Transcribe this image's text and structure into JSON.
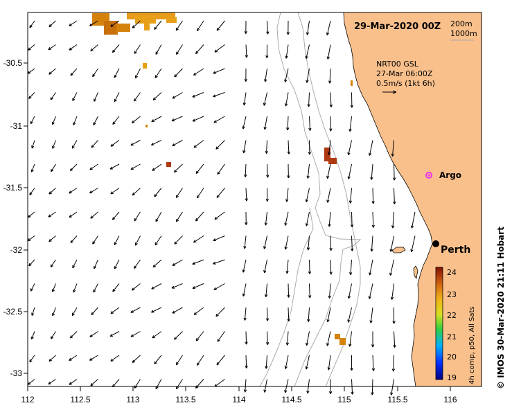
{
  "header": {
    "date_label": "29-Mar-2020 00Z",
    "depth_contours": [
      "200m",
      "1000m"
    ]
  },
  "current_legend": {
    "line1": "NRT00 GSL",
    "line2": "27-Mar 06:00Z",
    "line3": "0.5m/s (1kt 6h)"
  },
  "axes": {
    "x_ticks": [
      "112",
      "112.5",
      "113",
      "113.5",
      "114",
      "114.5",
      "115",
      "115.5",
      "116"
    ],
    "y_ticks": [
      "-30.5",
      "-31",
      "-31.5",
      "-32",
      "-32.5",
      "-33"
    ]
  },
  "places": {
    "argo_label": "Argo",
    "perth_label": "Perth"
  },
  "colorbar": {
    "title": "4h comp, p50, All Sats",
    "ticks": [
      "24",
      "23",
      "22",
      "21",
      "20",
      "19"
    ],
    "range": [
      19,
      24
    ]
  },
  "credit": "© IMOS 30-Mar-2020 21:11 Hobart",
  "colors": {
    "land": "#f9c08c",
    "sst_warm": "#d4820c",
    "sst_hot": "#b03a10",
    "argo_marker": "#ee33ee",
    "contour": "#aaaaaa"
  }
}
